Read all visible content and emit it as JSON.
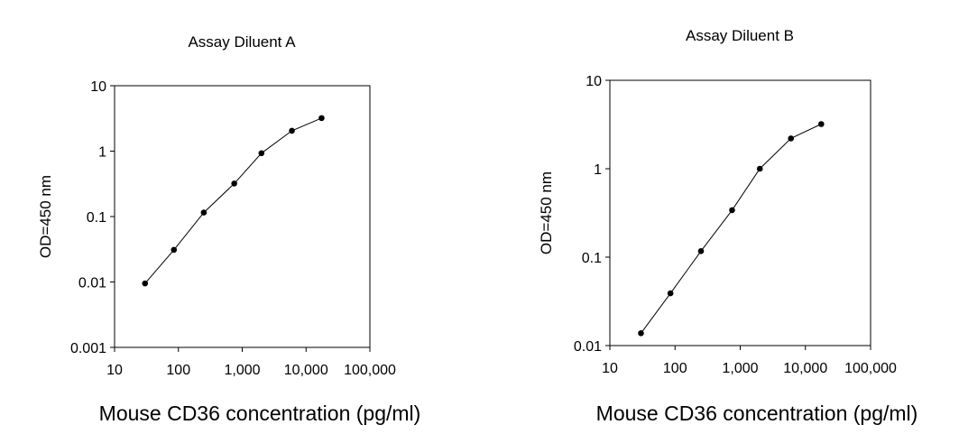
{
  "chart_data": [
    {
      "type": "line",
      "title": "Assay Diluent A",
      "xlabel": "Mouse CD36 concentration (pg/ml)",
      "ylabel": "OD=450 nm",
      "x_scale": "log",
      "y_scale": "log",
      "xlim": [
        10,
        100000
      ],
      "ylim": [
        0.001,
        10
      ],
      "x_ticks": [
        10,
        100,
        1000,
        10000,
        100000
      ],
      "x_tick_labels": [
        "10",
        "100",
        "1,000",
        "10,000",
        "100,000"
      ],
      "y_ticks": [
        0.001,
        0.01,
        0.1,
        1,
        10
      ],
      "y_tick_labels": [
        "0.001",
        "0.01",
        "0.1",
        "1",
        "10"
      ],
      "grid": false,
      "series": [
        {
          "x": [
            30,
            85,
            250,
            750,
            2000,
            6000,
            17500
          ],
          "y": [
            0.0095,
            0.031,
            0.115,
            0.32,
            0.93,
            2.05,
            3.2
          ]
        }
      ]
    },
    {
      "type": "line",
      "title": "Assay Diluent B",
      "xlabel": "Mouse CD36 concentration (pg/ml)",
      "ylabel": "OD=450 nm",
      "x_scale": "log",
      "y_scale": "log",
      "xlim": [
        10,
        100000
      ],
      "ylim": [
        0.01,
        10
      ],
      "x_ticks": [
        10,
        100,
        1000,
        10000,
        100000
      ],
      "x_tick_labels": [
        "10",
        "100",
        "1,000",
        "10,000",
        "100,000"
      ],
      "y_ticks": [
        0.01,
        0.1,
        1,
        10
      ],
      "y_tick_labels": [
        "0.01",
        "0.1",
        "1",
        "10"
      ],
      "grid": false,
      "series": [
        {
          "x": [
            30,
            85,
            250,
            750,
            2000,
            6000,
            17500
          ],
          "y": [
            0.0138,
            0.039,
            0.117,
            0.34,
            1.0,
            2.2,
            3.2
          ]
        }
      ]
    }
  ]
}
